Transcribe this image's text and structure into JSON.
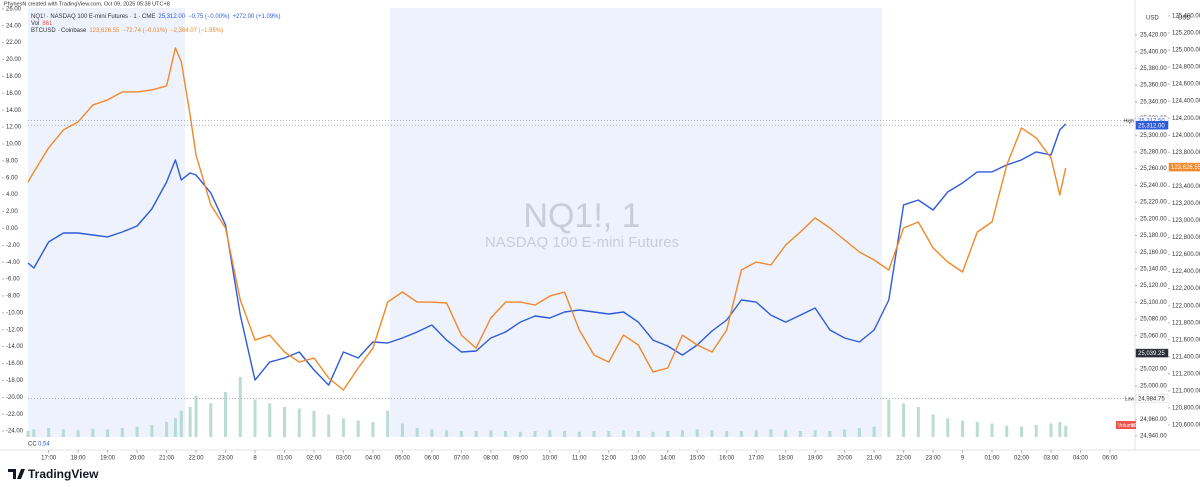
{
  "header": "PhynesN created with TradingView.com, Oct 09, 2025 05:38 UTC+8",
  "footer": {
    "logo": "TradingView"
  },
  "watermark": {
    "symbol": "NQ1!, 1",
    "description": "NASDAQ 100 E-mini Futures"
  },
  "chart_data": {
    "type": "line",
    "grid": false,
    "x": [
      -0.7,
      -0.5,
      0,
      0.5,
      1,
      1.5,
      2,
      2.5,
      3,
      3.5,
      4,
      4.3,
      4.5,
      4.8,
      5,
      5.5,
      6,
      6.5,
      7,
      7.5,
      8,
      8.5,
      9,
      9.5,
      10,
      10.5,
      11,
      11.5,
      12,
      12.5,
      13,
      13.5,
      14,
      14.5,
      15,
      15.5,
      16,
      16.5,
      17,
      17.5,
      18,
      18.5,
      19,
      19.5,
      20,
      20.5,
      21,
      21.5,
      22,
      22.5,
      23,
      23.5,
      24,
      24.5,
      25,
      25.5,
      26,
      26.5,
      27,
      27.5,
      28,
      28.5,
      29,
      29.5,
      30,
      30.5,
      31,
      31.5,
      32,
      32.5,
      33,
      33.5,
      34,
      34.3,
      34.5
    ],
    "xlim": [
      -0.7,
      36.85
    ],
    "xticks": [
      {
        "value": 0,
        "label": "17:00"
      },
      {
        "value": 1,
        "label": "18:00"
      },
      {
        "value": 2,
        "label": "19:00"
      },
      {
        "value": 3,
        "label": "20:00"
      },
      {
        "value": 4,
        "label": "21:00"
      },
      {
        "value": 5,
        "label": "22:00"
      },
      {
        "value": 6,
        "label": "23:00"
      },
      {
        "value": 7,
        "label": "8"
      },
      {
        "value": 8,
        "label": "01:00"
      },
      {
        "value": 9,
        "label": "02:00"
      },
      {
        "value": 10,
        "label": "03:00"
      },
      {
        "value": 11,
        "label": "04:00"
      },
      {
        "value": 12,
        "label": "05:00"
      },
      {
        "value": 13,
        "label": "06:00"
      },
      {
        "value": 14,
        "label": "07:00"
      },
      {
        "value": 15,
        "label": "08:00"
      },
      {
        "value": 16,
        "label": "09:00"
      },
      {
        "value": 17,
        "label": "10:00"
      },
      {
        "value": 18,
        "label": "11:00"
      },
      {
        "value": 19,
        "label": "12:00"
      },
      {
        "value": 20,
        "label": "13:00"
      },
      {
        "value": 21,
        "label": "14:00"
      },
      {
        "value": 22,
        "label": "15:00"
      },
      {
        "value": 23,
        "label": "16:00"
      },
      {
        "value": 24,
        "label": "17:00"
      },
      {
        "value": 25,
        "label": "18:00"
      },
      {
        "value": 26,
        "label": "19:00"
      },
      {
        "value": 27,
        "label": "20:00"
      },
      {
        "value": 28,
        "label": "21:00"
      },
      {
        "value": 29,
        "label": "22:00"
      },
      {
        "value": 30,
        "label": "23:00"
      },
      {
        "value": 31,
        "label": "9"
      },
      {
        "value": 32,
        "label": "01:00"
      },
      {
        "value": 33,
        "label": "02:00"
      },
      {
        "value": 34,
        "label": "03:00"
      },
      {
        "value": 35,
        "label": "04:00"
      },
      {
        "value": 36,
        "label": "06:00"
      }
    ],
    "ylim": [
      -24.7,
      26.1
    ],
    "yticks": [
      {
        "value": 26,
        "label": "26.00"
      },
      {
        "value": 24,
        "label": "24.00"
      },
      {
        "value": 22,
        "label": "22.00"
      },
      {
        "value": 20,
        "label": "20.00"
      },
      {
        "value": 18,
        "label": "18.00"
      },
      {
        "value": 16,
        "label": "16.00"
      },
      {
        "value": 14,
        "label": "14.00"
      },
      {
        "value": 12,
        "label": "12.00"
      },
      {
        "value": 10,
        "label": "10.00"
      },
      {
        "value": 8,
        "label": "8.00"
      },
      {
        "value": 6,
        "label": "6.00"
      },
      {
        "value": 4,
        "label": "4.00"
      },
      {
        "value": 2,
        "label": "2.00"
      },
      {
        "value": 0,
        "label": "0.00"
      },
      {
        "value": -2,
        "label": "-2.00"
      },
      {
        "value": -4,
        "label": "-4.00"
      },
      {
        "value": -6,
        "label": "-6.00"
      },
      {
        "value": -8,
        "label": "-8.00"
      },
      {
        "value": -10,
        "label": "-10.00"
      },
      {
        "value": -12,
        "label": "-12.00"
      },
      {
        "value": -14,
        "label": "-14.00"
      },
      {
        "value": -16,
        "label": "-16.00"
      },
      {
        "value": -18,
        "label": "-18.00"
      },
      {
        "value": -20,
        "label": "-20.00"
      },
      {
        "value": -22,
        "label": "-22.00"
      },
      {
        "value": -24,
        "label": "-24.00"
      }
    ],
    "y2_unit": "USD",
    "y2lim": [
      24938.8,
      25452.3
    ],
    "y2ticks": [
      {
        "value": 25420,
        "label": "25,420.00"
      },
      {
        "value": 25400,
        "label": "25,400.00"
      },
      {
        "value": 25380,
        "label": "25,380.00"
      },
      {
        "value": 25360,
        "label": "25,360.00"
      },
      {
        "value": 25340,
        "label": "25,340.00"
      },
      {
        "value": 25320,
        "label": "25,320.00"
      },
      {
        "value": 25300,
        "label": "25,300.00"
      },
      {
        "value": 25280,
        "label": "25,280.00"
      },
      {
        "value": 25260,
        "label": "25,260.00"
      },
      {
        "value": 25240,
        "label": "25,240.00"
      },
      {
        "value": 25220,
        "label": "25,220.00"
      },
      {
        "value": 25200,
        "label": "25,200.00"
      },
      {
        "value": 25180,
        "label": "25,180.00"
      },
      {
        "value": 25160,
        "label": "25,160.00"
      },
      {
        "value": 25140,
        "label": "25,140.00"
      },
      {
        "value": 25120,
        "label": "25,120.00"
      },
      {
        "value": 25100,
        "label": "25,100.00"
      },
      {
        "value": 25080,
        "label": "25,080.00"
      },
      {
        "value": 25060,
        "label": "25,060.00"
      },
      {
        "value": 25020,
        "label": "25,020.00"
      },
      {
        "value": 25000,
        "label": "25,000.00"
      },
      {
        "value": 24960,
        "label": "24,960.00"
      },
      {
        "value": 24940,
        "label": "24,940.00"
      }
    ],
    "y3_unit": "USD",
    "y3lim": [
      120459,
      125493
    ],
    "y3ticks": [
      {
        "value": 125400,
        "label": "125,400.00"
      },
      {
        "value": 125200,
        "label": "125,200.00"
      },
      {
        "value": 125000,
        "label": "125,000.00"
      },
      {
        "value": 124800,
        "label": "124,800.00"
      },
      {
        "value": 124600,
        "label": "124,600.00"
      },
      {
        "value": 124400,
        "label": "124,400.00"
      },
      {
        "value": 124200,
        "label": "124,200.00"
      },
      {
        "value": 124000,
        "label": "124,000.00"
      },
      {
        "value": 123800,
        "label": "123,800.00"
      },
      {
        "value": 123400,
        "label": "123,400.00"
      },
      {
        "value": 123200,
        "label": "123,200.00"
      },
      {
        "value": 123000,
        "label": "123,000.00"
      },
      {
        "value": 122800,
        "label": "122,800.00"
      },
      {
        "value": 122600,
        "label": "122,600.00"
      },
      {
        "value": 122400,
        "label": "122,400.00"
      },
      {
        "value": 122200,
        "label": "122,200.00"
      },
      {
        "value": 122000,
        "label": "122,000.00"
      },
      {
        "value": 121800,
        "label": "121,800.00"
      },
      {
        "value": 121600,
        "label": "121,600.00"
      },
      {
        "value": 121400,
        "label": "121,400.00"
      },
      {
        "value": 121200,
        "label": "121,200.00"
      },
      {
        "value": 121000,
        "label": "121,000.00"
      },
      {
        "value": 120800,
        "label": "120,800.00"
      },
      {
        "value": 120600,
        "label": "120,600.00"
      }
    ],
    "series": [
      {
        "name": "NQ1! · NASDAQ 100 E-mini Futures · 1 · CME",
        "color": "#2f5bd8",
        "legend_values": [
          "25,312.00",
          "−0.75 (−0.00%)",
          "+272.00 (+1.09%)"
        ],
        "values": [
          -4.09,
          -4.69,
          -1.61,
          -0.54,
          -0.54,
          -0.78,
          -1.01,
          -0.42,
          0.29,
          2.3,
          5.5,
          8.11,
          5.74,
          6.57,
          6.33,
          4.2,
          0.41,
          -10.26,
          -17.96,
          -15.83,
          -15.35,
          -14.64,
          -16.77,
          -18.55,
          -14.64,
          -15.35,
          -13.45,
          -13.57,
          -12.98,
          -12.27,
          -11.44,
          -13.22,
          -14.64,
          -14.52,
          -12.98,
          -12.27,
          -11.09,
          -10.37,
          -10.61,
          -9.9,
          -9.66,
          -9.9,
          -10.14,
          -9.9,
          -11.09,
          -13.22,
          -13.93,
          -15.0,
          -13.81,
          -12.15,
          -10.85,
          -8.48,
          -8.72,
          -10.26,
          -11.09,
          -10.26,
          -9.43,
          -12.03,
          -12.98,
          -13.45,
          -12.03,
          -8.48,
          2.78,
          3.37,
          2.18,
          4.32,
          5.38,
          6.69,
          6.69,
          7.52,
          8.11,
          9.06,
          8.7,
          11.66,
          12.37
        ]
      },
      {
        "name": "BTCUSD · Coinbase",
        "color": "#f0892a",
        "legend_values": [
          "123,626.55",
          "−72.74 (−0.01%)",
          "−2,364.07 (−1.95%)"
        ],
        "values": [
          5.5,
          6.69,
          9.53,
          11.66,
          12.61,
          14.63,
          15.22,
          16.17,
          16.17,
          16.4,
          16.88,
          21.38,
          19.72,
          13.44,
          8.7,
          2.78,
          0.05,
          -8.48,
          -13.22,
          -12.63,
          -14.64,
          -15.83,
          -15.35,
          -17.72,
          -19.14,
          -16.53,
          -14.17,
          -8.72,
          -7.53,
          -8.72,
          -8.72,
          -8.83,
          -12.63,
          -14.17,
          -10.61,
          -8.72,
          -8.72,
          -9.07,
          -8.01,
          -7.53,
          -12.03,
          -14.99,
          -15.83,
          -12.63,
          -13.81,
          -17.01,
          -16.53,
          -12.63,
          -13.81,
          -14.64,
          -12.03,
          -4.92,
          -3.98,
          -4.33,
          -1.96,
          -0.42,
          1.24,
          0.05,
          -1.37,
          -2.79,
          -3.74,
          -4.92,
          0.05,
          0.76,
          -2.32,
          -3.98,
          -5.16,
          -0.42,
          0.76,
          7.52,
          11.9,
          10.72,
          8.35,
          3.96,
          7.16
        ]
      }
    ],
    "volume": {
      "name": "Volume",
      "legend": "Vol",
      "last": 861,
      "color": "#a9d3c8",
      "values": [
        8,
        10,
        12,
        10,
        9,
        11,
        10,
        12,
        14,
        16,
        20,
        25,
        35,
        40,
        55,
        45,
        60,
        80,
        50,
        45,
        40,
        38,
        35,
        30,
        25,
        22,
        20,
        35,
        18,
        12,
        10,
        9,
        8,
        8,
        9,
        8,
        7,
        8,
        9,
        8,
        7,
        8,
        8,
        9,
        8,
        7,
        8,
        9,
        10,
        9,
        8,
        8,
        9,
        10,
        9,
        8,
        9,
        8,
        10,
        12,
        14,
        50,
        45,
        40,
        30,
        25,
        22,
        20,
        18,
        15,
        14,
        16,
        18,
        20,
        15
      ]
    },
    "indicator": {
      "name": "CC",
      "value": 0.54
    },
    "price_labels": [
      {
        "text": "High",
        "value": 25317.5,
        "label": "25,317.50",
        "axis": "y2",
        "color": "#ffffff",
        "text_color": "#2f5bd8",
        "line": true
      },
      {
        "value": 25312,
        "label": "25,312.00",
        "axis": "y2",
        "color": "#2f5bd8",
        "text_color": "#ffffff",
        "line": true
      },
      {
        "value": 123626.55,
        "label": "123,626.55",
        "axis": "y3",
        "color": "#f0892a",
        "text_color": "#ffffff",
        "line": false
      },
      {
        "value": 25039.25,
        "label": "25,039.25",
        "axis": "y2",
        "color": "#2a2e39",
        "text_color": "#ffffff",
        "line": false
      },
      {
        "text": "Low",
        "value": 24984.75,
        "label": "24,984.75",
        "axis": "y2",
        "color": "#ffffff",
        "text_color": "#2a2e39",
        "line": true
      }
    ]
  }
}
